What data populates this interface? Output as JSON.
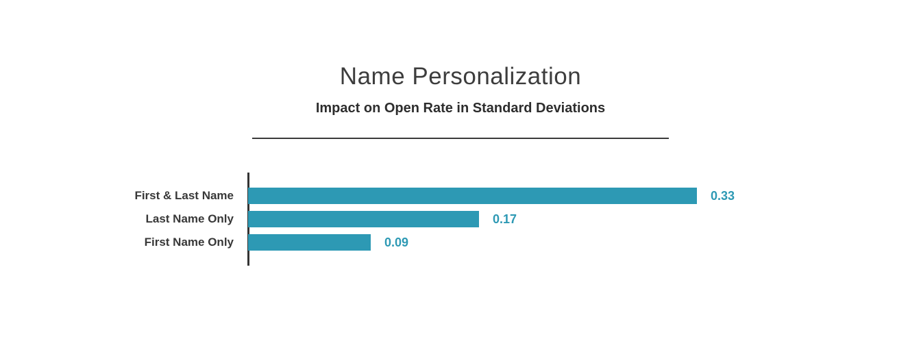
{
  "chart_data": {
    "type": "bar",
    "orientation": "horizontal",
    "title": "Name Personalization",
    "subtitle": "Impact on Open Rate in Standard Deviations",
    "categories": [
      "First & Last Name",
      "Last Name Only",
      "First Name Only"
    ],
    "values": [
      0.33,
      0.17,
      0.09
    ],
    "value_labels": [
      "0.33",
      "0.17",
      "0.09"
    ],
    "xlim": [
      0,
      0.34
    ],
    "grid": false,
    "legend": false,
    "bar_color": "#2D99B4",
    "value_label_color": "#2D99B4",
    "axis_color": "#333333",
    "title_color": "#3d3d3d",
    "subtitle_color": "#2d2d2d",
    "category_label_color": "#383838"
  }
}
